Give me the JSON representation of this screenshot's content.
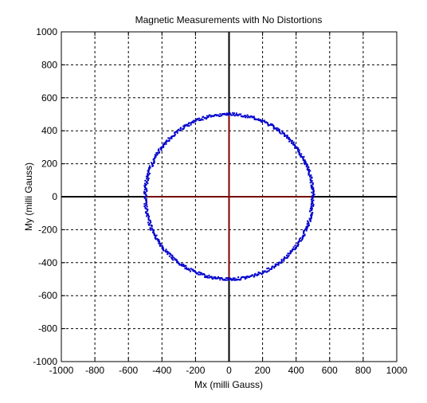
{
  "chart_data": {
    "type": "scatter",
    "title": "Magnetic Measurements with No Distortions",
    "xlabel": "Mx (milli Gauss)",
    "ylabel": "My (milli Gauss)",
    "xlim": [
      -1000,
      1000
    ],
    "ylim": [
      -1000,
      1000
    ],
    "xticks": [
      -1000,
      -800,
      -600,
      -400,
      -200,
      0,
      200,
      400,
      600,
      800,
      1000
    ],
    "yticks": [
      -1000,
      -800,
      -600,
      -400,
      -200,
      0,
      200,
      400,
      600,
      800,
      1000
    ],
    "xtick_labels": [
      "-1000",
      "-800",
      "-600",
      "-400",
      "-200",
      "0",
      "200",
      "400",
      "600",
      "800",
      "1000"
    ],
    "ytick_labels": [
      "-1000",
      "-800",
      "-600",
      "-400",
      "-200",
      "0",
      "200",
      "400",
      "600",
      "800",
      "1000"
    ],
    "grid": true,
    "grid_style": "dashed",
    "series": [
      {
        "marker": "dot",
        "color": "#0000cc",
        "shape": "circle",
        "center": [
          0,
          0
        ],
        "radius": 500,
        "x": [
          500,
          491,
          467,
          429,
          377,
          313,
          240,
          159,
          74,
          -13,
          -101,
          -186,
          -268,
          -343,
          -411,
          -471,
          -520,
          -558,
          -585,
          -601,
          -605,
          -598,
          -581,
          -555,
          -520,
          -479,
          -432,
          -381,
          -327,
          -272,
          -216,
          -161,
          -107,
          -56,
          -7,
          38,
          80,
          118,
          151,
          181,
          206,
          226,
          243,
          255,
          265,
          271,
          274,
          275,
          274,
          271,
          267
        ],
        "y": [
          0,
          61,
          121,
          179,
          233,
          282,
          326,
          364,
          396,
          421,
          439,
          449,
          453,
          449,
          439,
          422,
          399,
          371,
          338,
          301,
          261,
          217,
          172,
          125,
          78,
          31,
          -15,
          -59,
          -101,
          -140,
          -176,
          -208,
          -236,
          -261,
          -281,
          -297,
          -309,
          -317,
          -321,
          -321,
          -317,
          -310,
          -300,
          -286,
          -270,
          -252,
          -231,
          -208,
          -184,
          -158,
          -131
        ],
        "note_points": "Noisy samples distributed around a circle of radius ≈500"
      },
      {
        "name_hidden": true,
        "type": "line",
        "color": "#990000",
        "x": [
          -500,
          500
        ],
        "y": [
          0,
          0
        ]
      },
      {
        "name_hidden": true,
        "type": "line",
        "color": "#990000",
        "x": [
          0,
          0
        ],
        "y": [
          -500,
          500
        ]
      }
    ],
    "axis_lines": {
      "color": "#000000"
    }
  },
  "colors": {
    "background": "#ffffff",
    "data": "#0000cc",
    "radii": "#990000",
    "axes": "#000000",
    "grid": "#000000"
  }
}
